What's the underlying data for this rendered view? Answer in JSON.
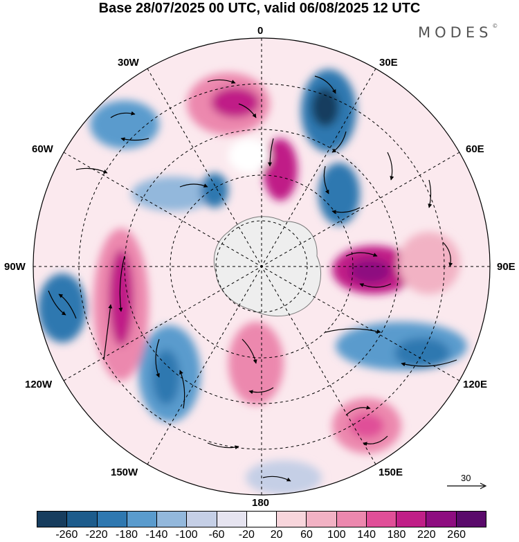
{
  "title": "Base 28/07/2025 00 UTC, valid 06/08/2025 12 UTC",
  "brand": "MODES",
  "brand_mark": "©",
  "longitude_labels": {
    "lon_0": "0",
    "lon_30e": "30E",
    "lon_60e": "60E",
    "lon_90e": "90E",
    "lon_120e": "120E",
    "lon_150e": "150E",
    "lon_180": "180",
    "lon_150w": "150W",
    "lon_120w": "120W",
    "lon_90w": "90W",
    "lon_60w": "60W",
    "lon_30w": "30W"
  },
  "reference_vector": {
    "label": "30"
  },
  "colorbar": {
    "colors": [
      "#173d5e",
      "#1d5c8c",
      "#2f78b0",
      "#5a9bcd",
      "#93b8dc",
      "#c5cfe6",
      "#e6e4f0",
      "#ffffff",
      "#f8d6dc",
      "#f2b2c4",
      "#ec88ae",
      "#e04f98",
      "#c01f87",
      "#8e0d80",
      "#5a0a6b"
    ],
    "ticks": [
      "-260",
      "-220",
      "-180",
      "-140",
      "-100",
      "-60",
      "-20",
      "20",
      "60",
      "100",
      "140",
      "180",
      "220",
      "260"
    ]
  }
}
